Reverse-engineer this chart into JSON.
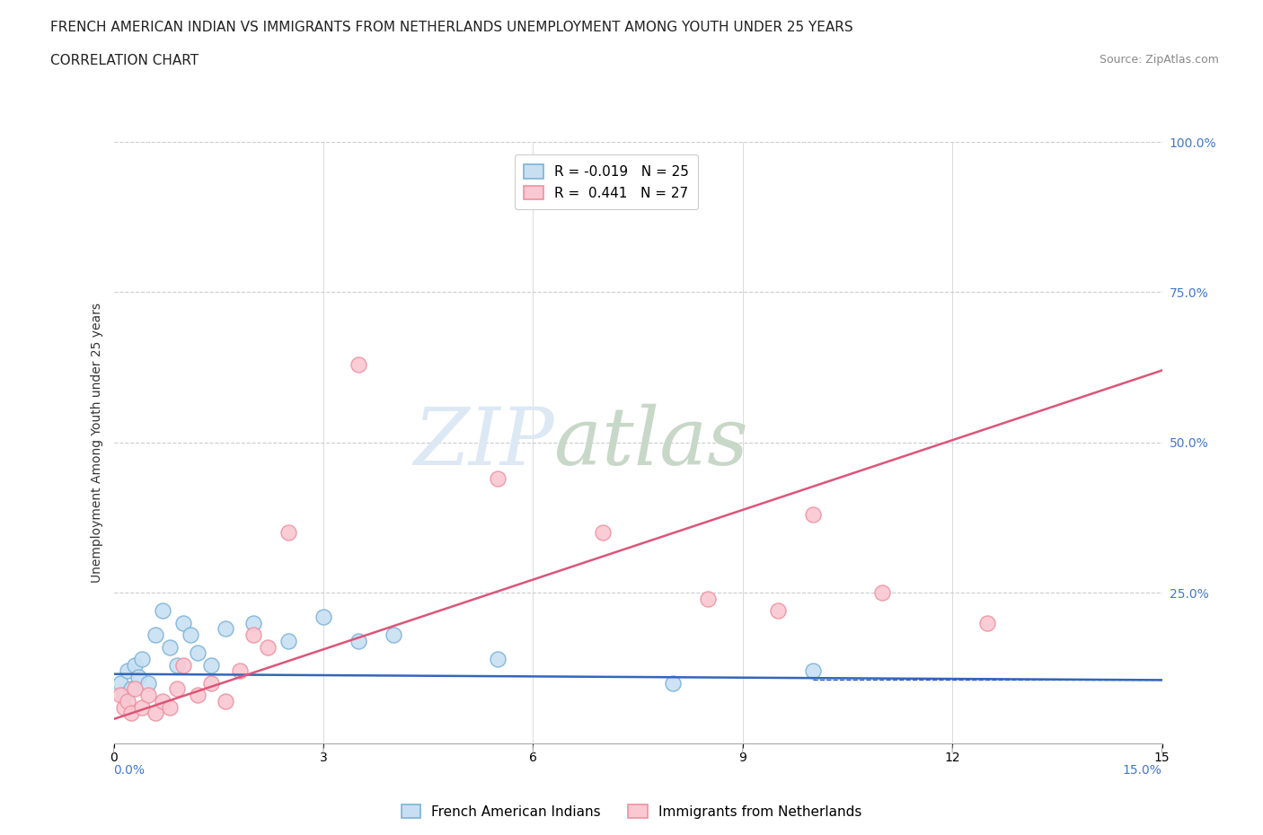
{
  "title": "FRENCH AMERICAN INDIAN VS IMMIGRANTS FROM NETHERLANDS UNEMPLOYMENT AMONG YOUTH UNDER 25 YEARS",
  "subtitle": "CORRELATION CHART",
  "source": "Source: ZipAtlas.com",
  "ylabel": "Unemployment Among Youth under 25 years",
  "xlim": [
    0.0,
    15.0
  ],
  "ylim": [
    0.0,
    100.0
  ],
  "legend_entry1": "R = -0.019   N = 25",
  "legend_entry2": "R =  0.441   N = 27",
  "series1_name": "French American Indians",
  "series2_name": "Immigrants from Netherlands",
  "series1_color": "#7ab3d9",
  "series2_color": "#f090a0",
  "series1_fill": "#c8dff2",
  "series2_fill": "#fac8d2",
  "series1_line_color": "#3366bb",
  "series2_line_color": "#dd5577",
  "watermark_zip": "ZIP",
  "watermark_atlas": "atlas",
  "background_color": "#ffffff",
  "grid_color": "#cccccc",
  "series1_x": [
    0.1,
    0.15,
    0.2,
    0.25,
    0.3,
    0.35,
    0.4,
    0.5,
    0.6,
    0.7,
    0.8,
    0.9,
    1.0,
    1.1,
    1.2,
    1.4,
    1.6,
    2.0,
    2.5,
    3.0,
    3.5,
    4.0,
    5.5,
    8.0,
    10.0
  ],
  "series1_y": [
    10,
    8,
    12,
    9,
    13,
    11,
    14,
    10,
    18,
    22,
    16,
    13,
    20,
    18,
    15,
    13,
    19,
    20,
    17,
    21,
    17,
    18,
    14,
    10,
    12
  ],
  "series2_x": [
    0.1,
    0.15,
    0.2,
    0.25,
    0.3,
    0.4,
    0.5,
    0.6,
    0.7,
    0.8,
    0.9,
    1.0,
    1.2,
    1.4,
    1.6,
    1.8,
    2.0,
    2.2,
    2.5,
    3.5,
    5.5,
    7.0,
    8.5,
    9.5,
    10.0,
    11.0,
    12.5
  ],
  "series2_y": [
    8,
    6,
    7,
    5,
    9,
    6,
    8,
    5,
    7,
    6,
    9,
    13,
    8,
    10,
    7,
    12,
    18,
    16,
    35,
    63,
    44,
    35,
    24,
    22,
    38,
    25,
    20
  ],
  "series1_line_x0": 0.0,
  "series1_line_y0": 11.5,
  "series1_line_x1": 15.0,
  "series1_line_y1": 10.5,
  "series2_line_x0": 0.0,
  "series2_line_y0": 4.0,
  "series2_line_x1": 15.0,
  "series2_line_y1": 62.0,
  "title_fontsize": 11,
  "subtitle_fontsize": 11,
  "source_fontsize": 9,
  "ylabel_fontsize": 10,
  "legend_fontsize": 11,
  "tick_fontsize": 10
}
